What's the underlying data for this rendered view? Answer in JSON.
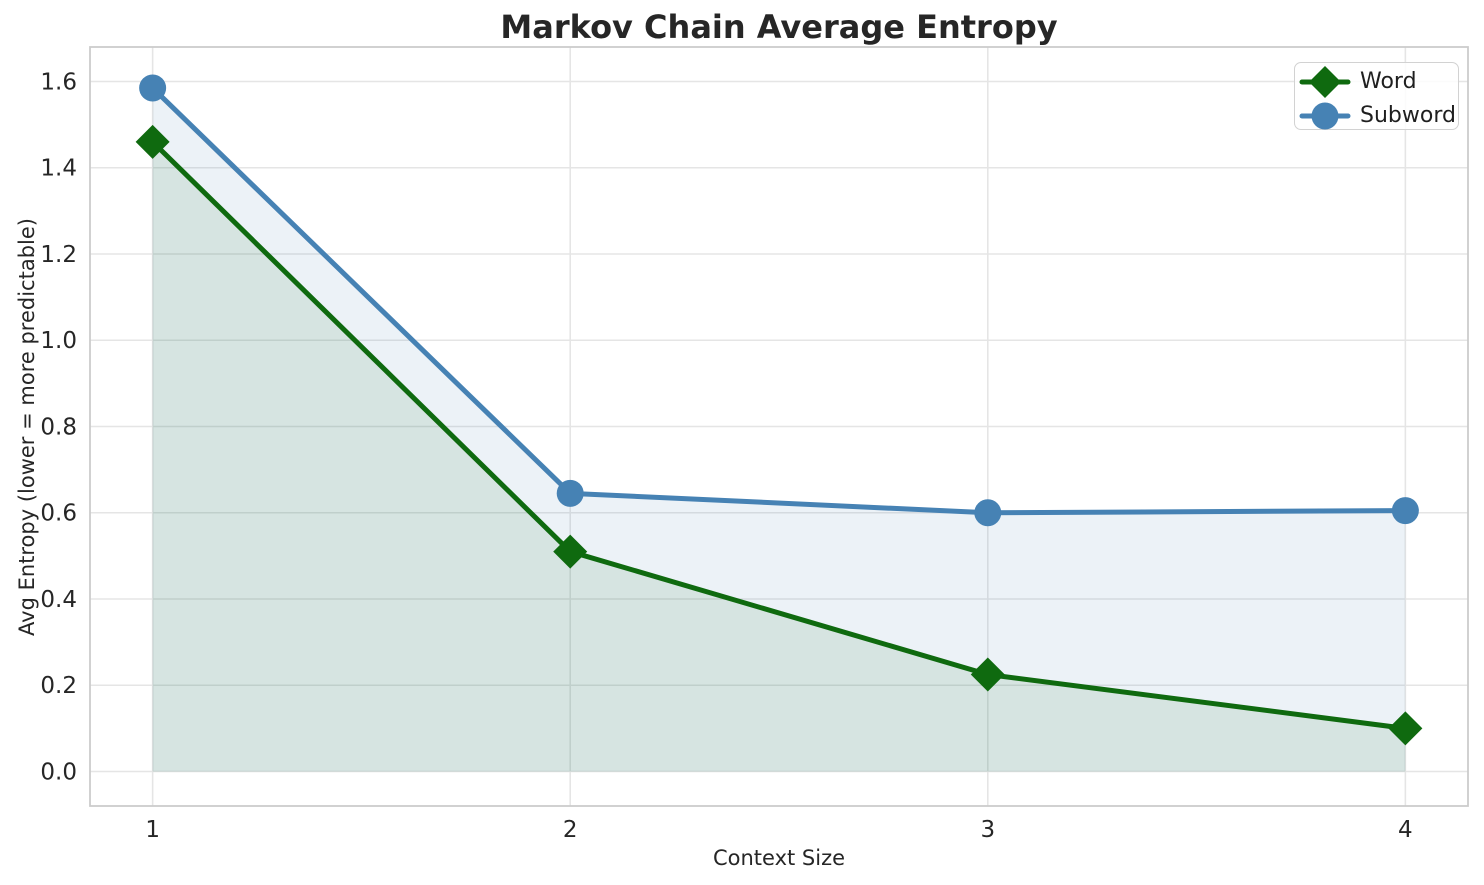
{
  "chart_data": {
    "type": "line",
    "title": "Markov Chain Average Entropy",
    "xlabel": "Context Size",
    "ylabel": "Avg Entropy (lower = more predictable)",
    "x": [
      1,
      2,
      3,
      4
    ],
    "series": [
      {
        "name": "Word",
        "marker": "diamond",
        "color": "#0f6a0f",
        "fill_alpha": 0.1,
        "values": [
          1.46,
          0.51,
          0.225,
          0.1
        ]
      },
      {
        "name": "Subword",
        "marker": "circle",
        "color": "#4682b4",
        "fill_alpha": 0.1,
        "values": [
          1.585,
          0.645,
          0.6,
          0.605
        ]
      }
    ],
    "xticks": [
      1,
      2,
      3,
      4
    ],
    "yticks": [
      0.0,
      0.2,
      0.4,
      0.6,
      0.8,
      1.0,
      1.2,
      1.4,
      1.6
    ],
    "xlim": [
      0.85,
      4.15
    ],
    "ylim": [
      -0.08,
      1.68
    ],
    "grid": true,
    "area_baseline": 0,
    "legend_position": "upper right"
  },
  "colors": {
    "background": "#ffffff",
    "text": "#262626",
    "grid": "#e5e5e5",
    "spine": "#cccccc",
    "legend_border": "#d2d2d2"
  }
}
